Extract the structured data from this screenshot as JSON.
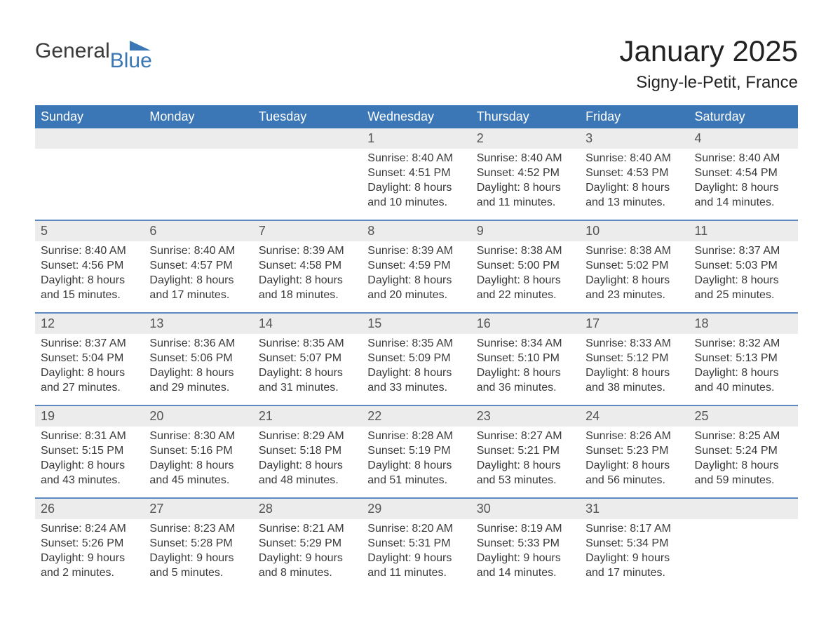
{
  "brand": {
    "part1": "General",
    "part2": "Blue"
  },
  "title": "January 2025",
  "location": "Signy-le-Petit, France",
  "colors": {
    "header_bg": "#3b77b7",
    "header_text": "#ffffff",
    "row_sep": "#5a8bc0",
    "daynum_bg": "#ececec",
    "daynum_text": "#545454",
    "body_text": "#3a3a3a",
    "page_bg": "#ffffff"
  },
  "typography": {
    "title_fontsize": 42,
    "location_fontsize": 24,
    "header_fontsize": 18,
    "daynum_fontsize": 18,
    "body_fontsize": 16
  },
  "weekdays": [
    "Sunday",
    "Monday",
    "Tuesday",
    "Wednesday",
    "Thursday",
    "Friday",
    "Saturday"
  ],
  "weeks": [
    [
      {
        "n": "",
        "sr": "",
        "ss": "",
        "dl1": "",
        "dl2": ""
      },
      {
        "n": "",
        "sr": "",
        "ss": "",
        "dl1": "",
        "dl2": ""
      },
      {
        "n": "",
        "sr": "",
        "ss": "",
        "dl1": "",
        "dl2": ""
      },
      {
        "n": "1",
        "sr": "Sunrise: 8:40 AM",
        "ss": "Sunset: 4:51 PM",
        "dl1": "Daylight: 8 hours",
        "dl2": "and 10 minutes."
      },
      {
        "n": "2",
        "sr": "Sunrise: 8:40 AM",
        "ss": "Sunset: 4:52 PM",
        "dl1": "Daylight: 8 hours",
        "dl2": "and 11 minutes."
      },
      {
        "n": "3",
        "sr": "Sunrise: 8:40 AM",
        "ss": "Sunset: 4:53 PM",
        "dl1": "Daylight: 8 hours",
        "dl2": "and 13 minutes."
      },
      {
        "n": "4",
        "sr": "Sunrise: 8:40 AM",
        "ss": "Sunset: 4:54 PM",
        "dl1": "Daylight: 8 hours",
        "dl2": "and 14 minutes."
      }
    ],
    [
      {
        "n": "5",
        "sr": "Sunrise: 8:40 AM",
        "ss": "Sunset: 4:56 PM",
        "dl1": "Daylight: 8 hours",
        "dl2": "and 15 minutes."
      },
      {
        "n": "6",
        "sr": "Sunrise: 8:40 AM",
        "ss": "Sunset: 4:57 PM",
        "dl1": "Daylight: 8 hours",
        "dl2": "and 17 minutes."
      },
      {
        "n": "7",
        "sr": "Sunrise: 8:39 AM",
        "ss": "Sunset: 4:58 PM",
        "dl1": "Daylight: 8 hours",
        "dl2": "and 18 minutes."
      },
      {
        "n": "8",
        "sr": "Sunrise: 8:39 AM",
        "ss": "Sunset: 4:59 PM",
        "dl1": "Daylight: 8 hours",
        "dl2": "and 20 minutes."
      },
      {
        "n": "9",
        "sr": "Sunrise: 8:38 AM",
        "ss": "Sunset: 5:00 PM",
        "dl1": "Daylight: 8 hours",
        "dl2": "and 22 minutes."
      },
      {
        "n": "10",
        "sr": "Sunrise: 8:38 AM",
        "ss": "Sunset: 5:02 PM",
        "dl1": "Daylight: 8 hours",
        "dl2": "and 23 minutes."
      },
      {
        "n": "11",
        "sr": "Sunrise: 8:37 AM",
        "ss": "Sunset: 5:03 PM",
        "dl1": "Daylight: 8 hours",
        "dl2": "and 25 minutes."
      }
    ],
    [
      {
        "n": "12",
        "sr": "Sunrise: 8:37 AM",
        "ss": "Sunset: 5:04 PM",
        "dl1": "Daylight: 8 hours",
        "dl2": "and 27 minutes."
      },
      {
        "n": "13",
        "sr": "Sunrise: 8:36 AM",
        "ss": "Sunset: 5:06 PM",
        "dl1": "Daylight: 8 hours",
        "dl2": "and 29 minutes."
      },
      {
        "n": "14",
        "sr": "Sunrise: 8:35 AM",
        "ss": "Sunset: 5:07 PM",
        "dl1": "Daylight: 8 hours",
        "dl2": "and 31 minutes."
      },
      {
        "n": "15",
        "sr": "Sunrise: 8:35 AM",
        "ss": "Sunset: 5:09 PM",
        "dl1": "Daylight: 8 hours",
        "dl2": "and 33 minutes."
      },
      {
        "n": "16",
        "sr": "Sunrise: 8:34 AM",
        "ss": "Sunset: 5:10 PM",
        "dl1": "Daylight: 8 hours",
        "dl2": "and 36 minutes."
      },
      {
        "n": "17",
        "sr": "Sunrise: 8:33 AM",
        "ss": "Sunset: 5:12 PM",
        "dl1": "Daylight: 8 hours",
        "dl2": "and 38 minutes."
      },
      {
        "n": "18",
        "sr": "Sunrise: 8:32 AM",
        "ss": "Sunset: 5:13 PM",
        "dl1": "Daylight: 8 hours",
        "dl2": "and 40 minutes."
      }
    ],
    [
      {
        "n": "19",
        "sr": "Sunrise: 8:31 AM",
        "ss": "Sunset: 5:15 PM",
        "dl1": "Daylight: 8 hours",
        "dl2": "and 43 minutes."
      },
      {
        "n": "20",
        "sr": "Sunrise: 8:30 AM",
        "ss": "Sunset: 5:16 PM",
        "dl1": "Daylight: 8 hours",
        "dl2": "and 45 minutes."
      },
      {
        "n": "21",
        "sr": "Sunrise: 8:29 AM",
        "ss": "Sunset: 5:18 PM",
        "dl1": "Daylight: 8 hours",
        "dl2": "and 48 minutes."
      },
      {
        "n": "22",
        "sr": "Sunrise: 8:28 AM",
        "ss": "Sunset: 5:19 PM",
        "dl1": "Daylight: 8 hours",
        "dl2": "and 51 minutes."
      },
      {
        "n": "23",
        "sr": "Sunrise: 8:27 AM",
        "ss": "Sunset: 5:21 PM",
        "dl1": "Daylight: 8 hours",
        "dl2": "and 53 minutes."
      },
      {
        "n": "24",
        "sr": "Sunrise: 8:26 AM",
        "ss": "Sunset: 5:23 PM",
        "dl1": "Daylight: 8 hours",
        "dl2": "and 56 minutes."
      },
      {
        "n": "25",
        "sr": "Sunrise: 8:25 AM",
        "ss": "Sunset: 5:24 PM",
        "dl1": "Daylight: 8 hours",
        "dl2": "and 59 minutes."
      }
    ],
    [
      {
        "n": "26",
        "sr": "Sunrise: 8:24 AM",
        "ss": "Sunset: 5:26 PM",
        "dl1": "Daylight: 9 hours",
        "dl2": "and 2 minutes."
      },
      {
        "n": "27",
        "sr": "Sunrise: 8:23 AM",
        "ss": "Sunset: 5:28 PM",
        "dl1": "Daylight: 9 hours",
        "dl2": "and 5 minutes."
      },
      {
        "n": "28",
        "sr": "Sunrise: 8:21 AM",
        "ss": "Sunset: 5:29 PM",
        "dl1": "Daylight: 9 hours",
        "dl2": "and 8 minutes."
      },
      {
        "n": "29",
        "sr": "Sunrise: 8:20 AM",
        "ss": "Sunset: 5:31 PM",
        "dl1": "Daylight: 9 hours",
        "dl2": "and 11 minutes."
      },
      {
        "n": "30",
        "sr": "Sunrise: 8:19 AM",
        "ss": "Sunset: 5:33 PM",
        "dl1": "Daylight: 9 hours",
        "dl2": "and 14 minutes."
      },
      {
        "n": "31",
        "sr": "Sunrise: 8:17 AM",
        "ss": "Sunset: 5:34 PM",
        "dl1": "Daylight: 9 hours",
        "dl2": "and 17 minutes."
      },
      {
        "n": "",
        "sr": "",
        "ss": "",
        "dl1": "",
        "dl2": ""
      }
    ]
  ]
}
